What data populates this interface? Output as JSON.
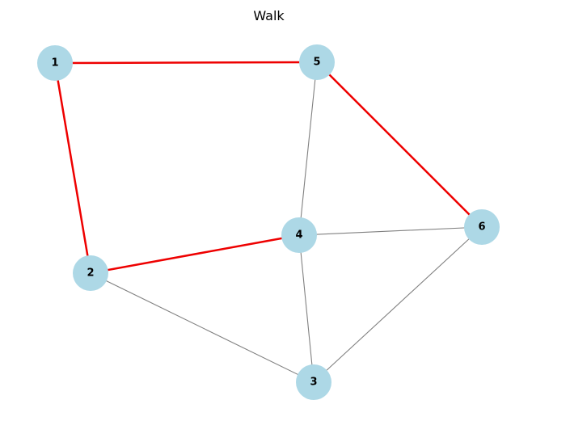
{
  "title": "Walk",
  "colors": {
    "node_fill": "#add8e6",
    "edge_default": "#808080",
    "edge_highlight": "#ee0000"
  },
  "nodes": [
    {
      "id": "1",
      "label": "1"
    },
    {
      "id": "2",
      "label": "2"
    },
    {
      "id": "3",
      "label": "3"
    },
    {
      "id": "4",
      "label": "4"
    },
    {
      "id": "5",
      "label": "5"
    },
    {
      "id": "6",
      "label": "6"
    }
  ],
  "edges": [
    {
      "source": "1",
      "target": "5",
      "highlighted": true
    },
    {
      "source": "1",
      "target": "2",
      "highlighted": true
    },
    {
      "source": "2",
      "target": "4",
      "highlighted": true
    },
    {
      "source": "5",
      "target": "6",
      "highlighted": true
    },
    {
      "source": "5",
      "target": "4",
      "highlighted": false
    },
    {
      "source": "4",
      "target": "6",
      "highlighted": false
    },
    {
      "source": "4",
      "target": "3",
      "highlighted": false
    },
    {
      "source": "2",
      "target": "3",
      "highlighted": false
    },
    {
      "source": "6",
      "target": "3",
      "highlighted": false
    }
  ]
}
